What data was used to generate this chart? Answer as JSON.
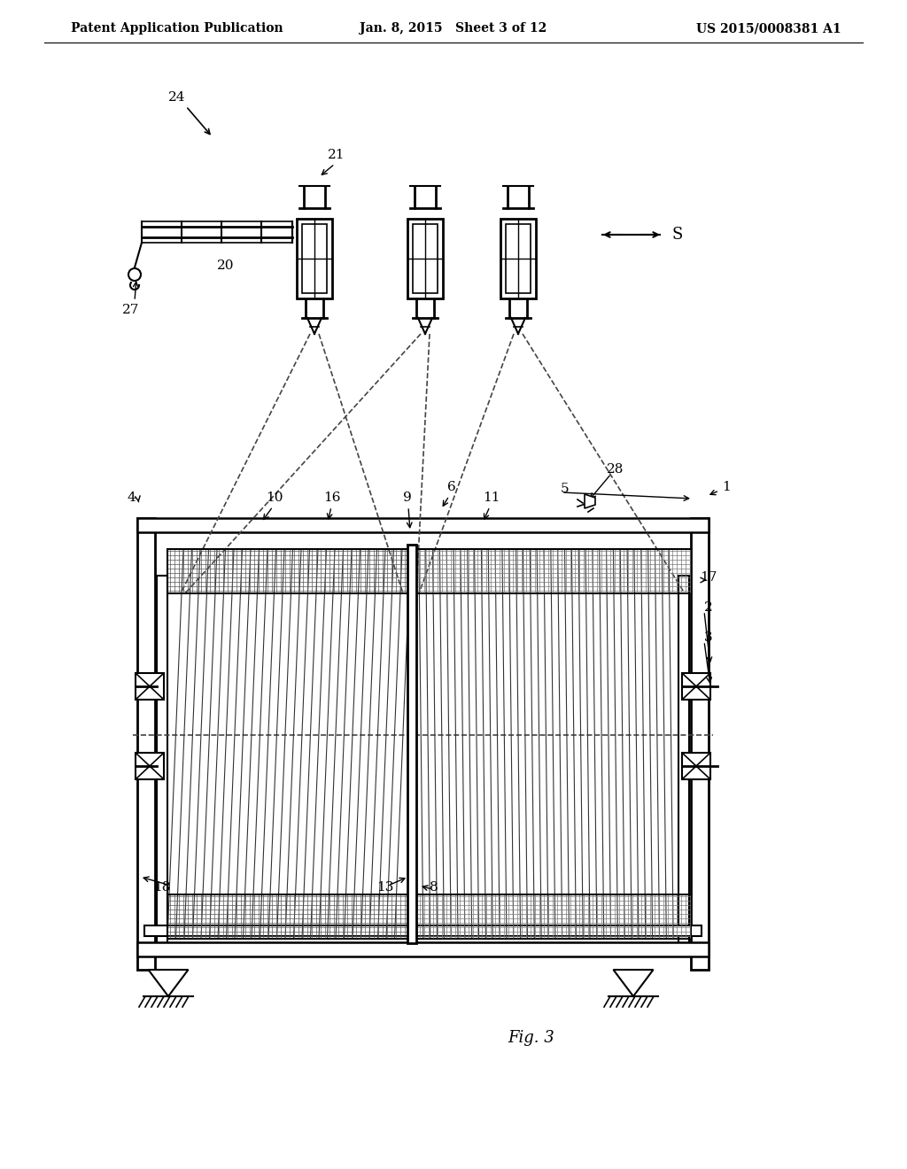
{
  "bg_color": "#ffffff",
  "line_color": "#000000",
  "header_left": "Patent Application Publication",
  "header_center": "Jan. 8, 2015   Sheet 3 of 12",
  "header_right": "US 2015/0008381 A1",
  "fig_label": "Fig. 3"
}
